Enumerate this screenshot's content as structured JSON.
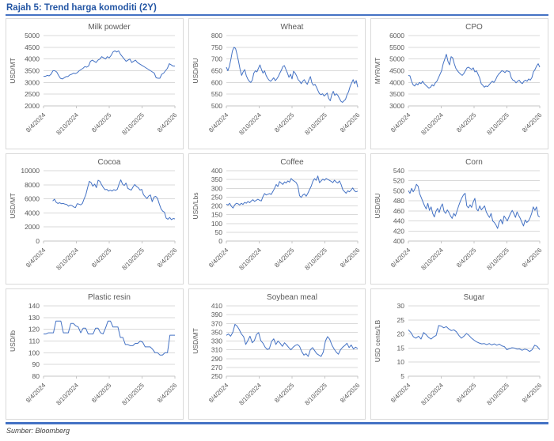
{
  "header": {
    "title": "Rajah 5: Trend harga komoditi (2Y)"
  },
  "footer": {
    "source": "Sumber: Bloomberg"
  },
  "colors": {
    "accent_line": "#4472C4",
    "header_text": "#2456A4",
    "rule": "#4472C4",
    "gridline": "#D9D9D9",
    "axis": "#C6C6C6",
    "text": "#595959"
  },
  "x_tick_labels": [
    "8/4/2024",
    "8/10/2024",
    "8/4/2025",
    "8/10/2025",
    "8/4/2026"
  ],
  "chart_data": [
    {
      "type": "line",
      "title": "Milk powder",
      "ylabel": "USD/MT",
      "ylim": [
        2000,
        5000
      ],
      "ystep": 500,
      "x_start": 0,
      "xticks": [
        "8/4/2024",
        "8/10/2024",
        "8/4/2025",
        "8/10/2025",
        "8/4/2026"
      ],
      "values": [
        3260,
        3260,
        3300,
        3280,
        3350,
        3500,
        3500,
        3450,
        3300,
        3180,
        3150,
        3200,
        3250,
        3250,
        3320,
        3350,
        3400,
        3380,
        3420,
        3500,
        3550,
        3600,
        3680,
        3650,
        3700,
        3900,
        3950,
        3900,
        3850,
        3950,
        4000,
        4100,
        4050,
        4000,
        4100,
        4050,
        4150,
        4300,
        4350,
        4300,
        4350,
        4200,
        4100,
        4000,
        3900,
        3950,
        4000,
        3850,
        3900,
        3950,
        3850,
        3800,
        3750,
        3700,
        3650,
        3600,
        3550,
        3500,
        3450,
        3400,
        3200,
        3180,
        3180,
        3350,
        3400,
        3500,
        3600,
        3800,
        3750,
        3700,
        3700
      ]
    },
    {
      "type": "line",
      "title": "Wheat",
      "ylabel": "USD/BU",
      "ylim": [
        500,
        800
      ],
      "ystep": 50,
      "x_start": 0,
      "xticks": [
        "8/4/2024",
        "8/10/2024",
        "8/4/2025",
        "8/10/2025",
        "8/4/2026"
      ],
      "values": [
        665,
        650,
        670,
        700,
        735,
        750,
        745,
        720,
        690,
        655,
        630,
        645,
        655,
        630,
        615,
        605,
        600,
        610,
        640,
        650,
        645,
        660,
        675,
        655,
        640,
        650,
        630,
        618,
        610,
        605,
        612,
        620,
        608,
        615,
        625,
        640,
        652,
        668,
        672,
        655,
        640,
        622,
        635,
        615,
        648,
        640,
        628,
        612,
        605,
        595,
        605,
        612,
        600,
        592,
        610,
        625,
        598,
        588,
        592,
        580,
        565,
        552,
        548,
        552,
        542,
        548,
        555,
        532,
        522,
        548,
        562,
        545,
        552,
        545,
        532,
        520,
        515,
        522,
        528,
        548,
        560,
        582,
        598,
        612,
        595,
        608,
        580
      ]
    },
    {
      "type": "line",
      "title": "CPO",
      "ylabel": "MYR/MT",
      "ylim": [
        3000,
        6000
      ],
      "ystep": 500,
      "x_start": 0,
      "xticks": [
        "8/4/2024",
        "8/10/2024",
        "8/4/2025",
        "8/10/2025",
        "8/4/2026"
      ],
      "values": [
        4300,
        4280,
        4050,
        3900,
        3850,
        3950,
        3900,
        4000,
        3950,
        4050,
        3950,
        3880,
        3820,
        3760,
        3800,
        3900,
        3850,
        3980,
        4050,
        4200,
        4350,
        4500,
        4800,
        5000,
        5200,
        4900,
        4750,
        5100,
        5050,
        4800,
        4600,
        4500,
        4420,
        4350,
        4300,
        4380,
        4500,
        4620,
        4650,
        4600,
        4550,
        4620,
        4450,
        4500,
        4350,
        4200,
        3950,
        3880,
        3800,
        3850,
        3820,
        3900,
        3980,
        4050,
        4000,
        4100,
        4250,
        4350,
        4420,
        4500,
        4480,
        4420,
        4500,
        4480,
        4450,
        4200,
        4100,
        4080,
        3980,
        4050,
        4100,
        4000,
        3950,
        4050,
        4100,
        4050,
        4150,
        4100,
        4200,
        4450,
        4550,
        4700,
        4800,
        4650
      ]
    },
    {
      "type": "line",
      "title": "Cocoa",
      "ylabel": "USD/MT",
      "ylim": [
        0,
        10000
      ],
      "ystep": 2000,
      "x_start": 0.07,
      "xticks": [
        "8/4/2024",
        "8/10/2024",
        "8/4/2025",
        "8/10/2025",
        "8/4/2026"
      ],
      "values": [
        5700,
        5950,
        5500,
        5350,
        5450,
        5300,
        5350,
        5250,
        5200,
        4950,
        5100,
        5050,
        4850,
        4750,
        5300,
        5250,
        5150,
        5350,
        6000,
        6600,
        7600,
        8500,
        8300,
        7800,
        8100,
        7600,
        8650,
        8500,
        8000,
        7600,
        7300,
        7350,
        7100,
        7250,
        7100,
        7300,
        7200,
        7350,
        8100,
        8700,
        8100,
        7900,
        8250,
        7500,
        7350,
        7250,
        7700,
        8050,
        7750,
        7600,
        7250,
        7350,
        6600,
        6300,
        6050,
        6400,
        6550,
        5600,
        6250,
        6350,
        6100,
        5300,
        4600,
        4250,
        4100,
        3250,
        3100,
        3350,
        3050,
        3200,
        3150
      ]
    },
    {
      "type": "line",
      "title": "Coffee",
      "ylabel": "USD/Lbs",
      "ylim": [
        0,
        400
      ],
      "ystep": 50,
      "x_start": 0,
      "xticks": [
        "8/4/2024",
        "8/10/2024",
        "8/4/2025",
        "8/10/2025",
        "8/4/2026"
      ],
      "values": [
        210,
        205,
        215,
        198,
        188,
        205,
        215,
        212,
        205,
        215,
        208,
        220,
        215,
        225,
        218,
        228,
        235,
        225,
        232,
        238,
        232,
        228,
        252,
        270,
        262,
        266,
        270,
        265,
        282,
        300,
        322,
        310,
        338,
        330,
        322,
        336,
        330,
        342,
        335,
        356,
        345,
        340,
        332,
        312,
        258,
        248,
        262,
        268,
        255,
        272,
        292,
        312,
        340,
        355,
        345,
        370,
        332,
        342,
        352,
        345,
        356,
        350,
        345,
        340,
        332,
        346,
        336,
        330,
        342,
        322,
        292,
        282,
        272,
        286,
        280,
        290,
        302,
        286,
        280,
        284
      ]
    },
    {
      "type": "line",
      "title": "Corn",
      "ylabel": "USD/BU",
      "ylim": [
        400,
        540
      ],
      "ystep": 20,
      "x_start": 0,
      "xticks": [
        "8/4/2024",
        "8/10/2024",
        "8/4/2025",
        "8/10/2025",
        "8/4/2026"
      ],
      "values": [
        500,
        495,
        505,
        498,
        504,
        513,
        509,
        494,
        486,
        478,
        470,
        464,
        475,
        461,
        468,
        455,
        448,
        459,
        465,
        457,
        468,
        474,
        459,
        455,
        462,
        457,
        450,
        445,
        455,
        450,
        460,
        470,
        479,
        486,
        492,
        495,
        470,
        466,
        472,
        467,
        478,
        485,
        464,
        460,
        470,
        462,
        466,
        470,
        458,
        452,
        447,
        455,
        440,
        437,
        432,
        425,
        438,
        443,
        434,
        450,
        445,
        440,
        448,
        455,
        461,
        455,
        447,
        458,
        451,
        445,
        437,
        430,
        442,
        437,
        440,
        446,
        455,
        468,
        461,
        468,
        450,
        448
      ]
    },
    {
      "type": "line",
      "title": "Plastic resin",
      "ylabel": "USD/lb",
      "ylim": [
        80,
        140
      ],
      "ystep": 10,
      "x_start": 0,
      "xticks": [
        "8/4/2024",
        "8/10/2024",
        "8/4/2025",
        "8/10/2025",
        "8/4/2026"
      ],
      "values": [
        116,
        116,
        117,
        117,
        117,
        127,
        127,
        127,
        117,
        117,
        117,
        125,
        125,
        123,
        122,
        117,
        121,
        121,
        116,
        116,
        116,
        121,
        121,
        117,
        116,
        121,
        127,
        127,
        122,
        122,
        122,
        113,
        113,
        107,
        107,
        106,
        106,
        108,
        108,
        110,
        109,
        105,
        105,
        105,
        103,
        100,
        100,
        98,
        98,
        100,
        100,
        115,
        115,
        115
      ]
    },
    {
      "type": "line",
      "title": "Soybean meal",
      "ylabel": "USD/MT",
      "ylim": [
        250,
        410
      ],
      "ystep": 20,
      "x_start": 0,
      "xticks": [
        "8/4/2024",
        "8/10/2024",
        "8/4/2025",
        "8/10/2025",
        "8/4/2026"
      ],
      "values": [
        343,
        346,
        341,
        350,
        368,
        364,
        356,
        346,
        340,
        322,
        331,
        341,
        326,
        331,
        345,
        349,
        331,
        325,
        316,
        311,
        313,
        329,
        335,
        322,
        330,
        325,
        318,
        326,
        321,
        315,
        310,
        316,
        320,
        322,
        318,
        306,
        298,
        301,
        295,
        310,
        315,
        308,
        301,
        298,
        295,
        305,
        330,
        340,
        334,
        321,
        312,
        305,
        300,
        310,
        316,
        320,
        325,
        315,
        321,
        312,
        316,
        313
      ]
    },
    {
      "type": "line",
      "title": "Sugar",
      "ylabel": "USD cents/LB",
      "ylim": [
        5,
        30
      ],
      "ystep": 5,
      "x_start": 0,
      "xticks": [
        "8/4/2024",
        "8/10/2024",
        "8/4/2025",
        "8/10/2025",
        "8/4/2026"
      ],
      "values": [
        21.5,
        20.5,
        19,
        18.5,
        19.2,
        18.2,
        20.5,
        19.8,
        18.8,
        18.2,
        19,
        19.5,
        23,
        22.8,
        22.2,
        22.6,
        21.8,
        21.2,
        21.5,
        20.8,
        19.5,
        18.5,
        19.2,
        20.2,
        19.5,
        18.5,
        17.8,
        17.2,
        16.8,
        16.5,
        16.6,
        16.2,
        16.6,
        16.1,
        16.5,
        16,
        16.4,
        15.8,
        15.5,
        14.4,
        14.8,
        15.1,
        15,
        14.6,
        14.7,
        14.2,
        14.6,
        14.4,
        13.8,
        14.4,
        16,
        15.6,
        14.4
      ]
    }
  ]
}
